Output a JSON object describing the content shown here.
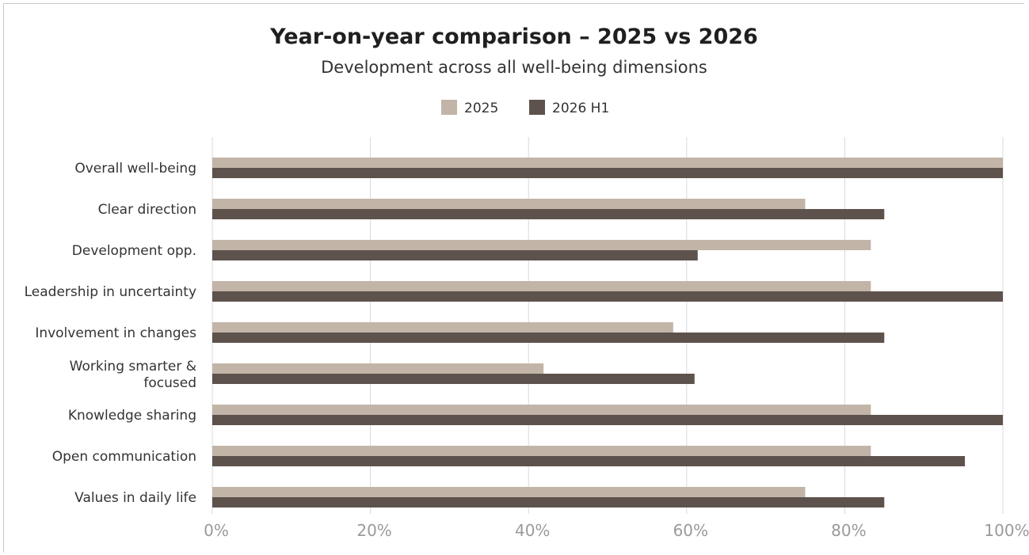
{
  "chart_data": {
    "type": "bar",
    "orientation": "horizontal",
    "title": "Year-on-year comparison – 2025 vs 2026",
    "subtitle": "Development across all well-being dimensions",
    "categories": [
      "Overall well-being",
      "Clear direction",
      "Development opp.",
      "Leadership in uncertainty",
      "Involvement in changes",
      "Working smarter & focused",
      "Knowledge sharing",
      "Open communication",
      "Values in daily life"
    ],
    "category_lines": [
      [
        "Overall well-being"
      ],
      [
        "Clear direction"
      ],
      [
        "Development opp."
      ],
      [
        "Leadership in uncertainty"
      ],
      [
        "Involvement in changes"
      ],
      [
        "Working smarter &",
        "focused"
      ],
      [
        "Knowledge sharing"
      ],
      [
        "Open communication"
      ],
      [
        "Values in daily life"
      ]
    ],
    "series": [
      {
        "name": "2025",
        "color": "#c2b4a7",
        "values": [
          100,
          75,
          83.3,
          83.3,
          58.3,
          41.9,
          83.3,
          83.3,
          75
        ]
      },
      {
        "name": "2026 H1",
        "color": "#5e524d",
        "values": [
          100,
          85,
          61.4,
          100,
          85,
          61,
          100,
          95.2,
          85
        ]
      }
    ],
    "xlim": [
      0,
      100
    ],
    "x_ticks": [
      0,
      20,
      40,
      60,
      80,
      100
    ],
    "x_tick_labels": [
      "0%",
      "20%",
      "40%",
      "60%",
      "80%",
      "100%"
    ],
    "grid": true,
    "legend_position": "top-center",
    "gridline_color": "#d9d9d9"
  }
}
